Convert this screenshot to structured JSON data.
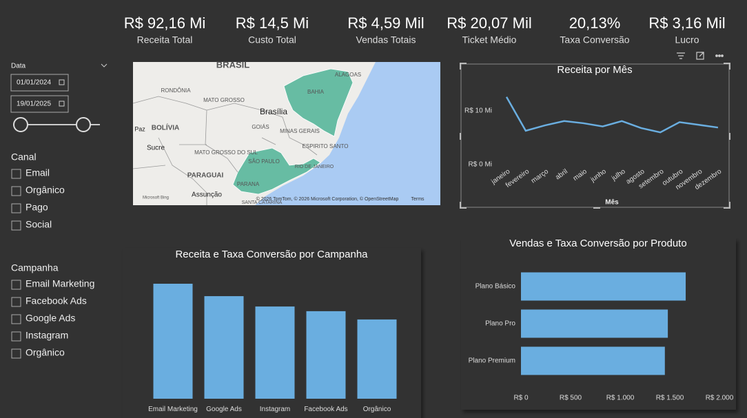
{
  "kpis": [
    {
      "value": "R$ 92,16 Mi",
      "label": "Receita Total"
    },
    {
      "value": "R$ 14,5 Mi",
      "label": "Custo Total"
    },
    {
      "value": "R$ 4,59 Mil",
      "label": "Vendas Totais"
    },
    {
      "value": "R$ 20,07 Mil",
      "label": "Ticket Médio"
    },
    {
      "value": "20,13%",
      "label": "Taxa Conversão"
    },
    {
      "value": "R$ 3,16 Mil",
      "label": "Lucro"
    }
  ],
  "filters": {
    "date": {
      "title": "Data",
      "start": "01/01/2024",
      "end": "19/01/2025"
    },
    "channel": {
      "title": "Canal",
      "options": [
        "Email",
        "Orgânico",
        "Pago",
        "Social"
      ]
    },
    "campaign": {
      "title": "Campanha",
      "options": [
        "Email Marketing",
        "Facebook Ads",
        "Google Ads",
        "Instagram",
        "Orgânico"
      ]
    }
  },
  "map": {
    "labels": [
      "BRASIL",
      "RONDÔNIA",
      "MATO GROSSO",
      "Brasília",
      "BAHIA",
      "ALAGOAS",
      "GOIÁS",
      "MINAS GERAIS",
      "BOLÍVIA",
      "Paz",
      "Sucre",
      "MATO GROSSO DO SUL",
      "ESPIRITO SANTO",
      "SÃO PAULO",
      "PARAGUAI",
      "RIO DE JANEIRO",
      "PARANA",
      "Assunção",
      "SANTA CATARINA"
    ],
    "logo": "Microsoft Bing",
    "attribution": "© 2026 TomTom, © 2026 Microsoft Corporation, © OpenStreetMap",
    "terms": "Terms"
  },
  "chart_data": [
    {
      "type": "line",
      "title": "Receita por Mês",
      "x_label": "Mês",
      "categories": [
        "janeiro",
        "fevereiro",
        "março",
        "abril",
        "maio",
        "junho",
        "julho",
        "agosto",
        "setembro",
        "outubro",
        "novembro",
        "dezembro"
      ],
      "values": [
        12.6,
        6.3,
        7.3,
        8.1,
        7.7,
        7.1,
        8.1,
        6.8,
        6.0,
        7.9,
        7.4,
        6.9
      ],
      "color": "#6aaee0",
      "ylim": [
        0,
        15
      ],
      "yticks": [
        {
          "value": 0,
          "label": "R$ 0 Mi"
        },
        {
          "value": 10,
          "label": "R$ 10 Mi"
        }
      ]
    },
    {
      "type": "bar",
      "title": "Receita e Taxa Conversão por Campanha",
      "categories": [
        "Email Marketing",
        "Google Ads",
        "Instagram",
        "Facebook Ads",
        "Orgânico"
      ],
      "values": [
        22.2,
        19.8,
        17.8,
        16.9,
        15.3
      ],
      "color": "#6aaee0"
    },
    {
      "type": "hbar",
      "title": "Vendas e Taxa Conversão por Produto",
      "categories": [
        "Plano Básico",
        "Plano Pro",
        "Plano Premium"
      ],
      "values": [
        1660,
        1480,
        1450
      ],
      "color": "#6aaee0",
      "xlim": [
        0,
        2000
      ],
      "xticks": [
        {
          "value": 0,
          "label": "R$ 0"
        },
        {
          "value": 500,
          "label": "R$ 500"
        },
        {
          "value": 1000,
          "label": "R$ 1.000"
        },
        {
          "value": 1500,
          "label": "R$ 1.500"
        },
        {
          "value": 2000,
          "label": "R$ 2.000"
        }
      ]
    }
  ]
}
